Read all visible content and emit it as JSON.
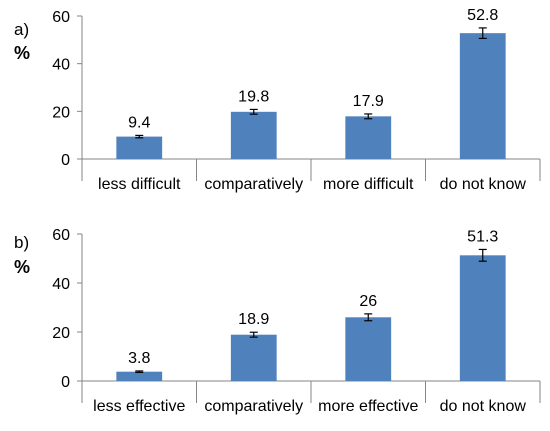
{
  "chart_data": [
    {
      "type": "bar",
      "panel_label": "a)",
      "ylabel": "%",
      "categories": [
        "less difficult",
        "comparatively",
        "more difficult",
        "do not know"
      ],
      "values": [
        9.4,
        19.8,
        17.9,
        52.8
      ],
      "value_labels": [
        "9.4",
        "19.8",
        "17.9",
        "52.8"
      ],
      "error": [
        0.5,
        1.0,
        1.0,
        2.2
      ],
      "ylim": [
        0,
        60
      ],
      "yticks": [
        "0",
        "20",
        "40",
        "60"
      ],
      "grid": false,
      "bar_color": "#4f81bd"
    },
    {
      "type": "bar",
      "panel_label": "b)",
      "ylabel": "%",
      "categories": [
        "less effective",
        "comparatively",
        "more effective",
        "do not know"
      ],
      "values": [
        3.8,
        18.9,
        26,
        51.3
      ],
      "value_labels": [
        "3.8",
        "18.9",
        "26",
        "51.3"
      ],
      "error": [
        0.3,
        1.0,
        1.4,
        2.4
      ],
      "ylim": [
        0,
        60
      ],
      "yticks": [
        "0",
        "20",
        "40",
        "60"
      ],
      "grid": false,
      "bar_color": "#4f81bd"
    }
  ]
}
